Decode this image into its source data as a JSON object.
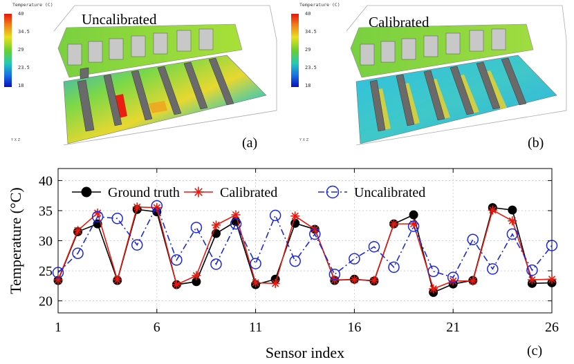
{
  "panel_a": {
    "title": "Uncalibrated",
    "label": "(a)",
    "colorbar": {
      "title": "Temperature (C)",
      "ticks": [
        "40",
        "34.5",
        "29",
        "23.5",
        "18"
      ]
    }
  },
  "panel_b": {
    "title": "Calibrated",
    "label": "(b)",
    "colorbar": {
      "title": "Temperature (C)",
      "ticks": [
        "40",
        "34.5",
        "29",
        "23.5",
        "18"
      ]
    }
  },
  "axes_gizmo": {
    "y": "Y",
    "x": "X",
    "z": "Z"
  },
  "chart_data": {
    "type": "line",
    "panel_label": "(c)",
    "xlabel": "Sensor index",
    "ylabel": "Temperature (°C)",
    "xlim": [
      1,
      26
    ],
    "ylim": [
      18,
      42
    ],
    "xticks": [
      1,
      6,
      11,
      16,
      21,
      26
    ],
    "yticks": [
      20,
      25,
      30,
      35,
      40
    ],
    "x": [
      1,
      2,
      3,
      4,
      5,
      6,
      7,
      8,
      9,
      10,
      11,
      12,
      13,
      14,
      15,
      16,
      17,
      18,
      19,
      20,
      21,
      22,
      23,
      24,
      25,
      26
    ],
    "legend_position": "top",
    "series": [
      {
        "name": "Ground truth",
        "color": "#000000",
        "marker": "dot",
        "dash": "solid",
        "values": [
          23.4,
          31.5,
          32.8,
          23.4,
          35.2,
          34.8,
          22.7,
          23.2,
          31.2,
          33.2,
          22.7,
          23.6,
          32.9,
          31.9,
          23.4,
          23.6,
          23.3,
          32.8,
          34.3,
          21.4,
          22.8,
          23.4,
          35.5,
          35.1,
          22.9,
          23.0
        ]
      },
      {
        "name": "Calibrated",
        "color": "#e8190e",
        "marker": "star",
        "dash": "solid",
        "values": [
          23.5,
          31.7,
          34.6,
          23.5,
          35.6,
          35.5,
          22.7,
          24.2,
          32.6,
          34.3,
          23.0,
          22.9,
          34.1,
          31.9,
          23.5,
          23.5,
          23.4,
          32.8,
          32.8,
          22.0,
          23.3,
          23.3,
          35.1,
          33.3,
          23.5,
          23.6
        ]
      },
      {
        "name": "Uncalibrated",
        "color": "#1a26e0",
        "marker": "circle",
        "dash": "dashdot",
        "values": [
          24.7,
          27.9,
          34.0,
          33.7,
          29.3,
          35.8,
          26.8,
          32.2,
          26.1,
          32.8,
          26.2,
          34.2,
          26.6,
          31.1,
          24.4,
          27.0,
          29.0,
          25.6,
          32.4,
          24.9,
          23.9,
          30.2,
          25.3,
          31.1,
          25.1,
          29.2
        ]
      }
    ]
  }
}
